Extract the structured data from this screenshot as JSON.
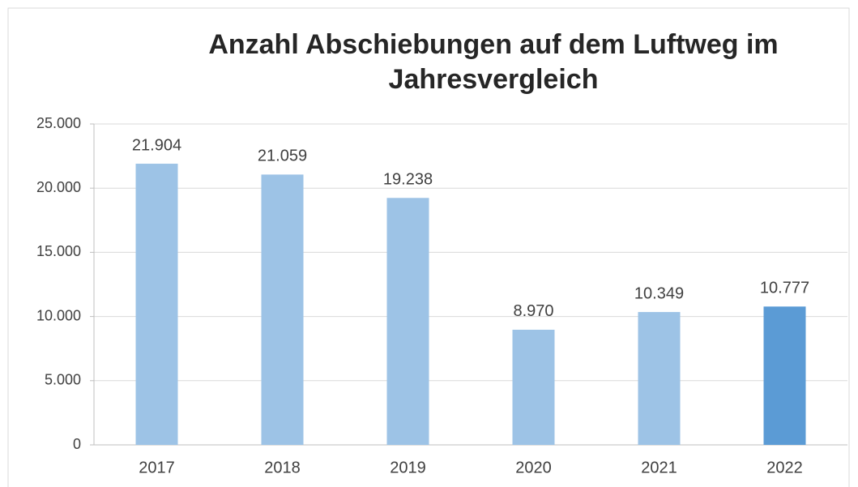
{
  "chart_data": {
    "type": "bar",
    "title": [
      "Anzahl Abschiebungen auf dem Luftweg im",
      "Jahresvergleich"
    ],
    "categories": [
      "2017",
      "2018",
      "2019",
      "2020",
      "2021",
      "2022"
    ],
    "values": [
      21904,
      21059,
      19238,
      8970,
      10349,
      10777
    ],
    "value_labels": [
      "21.904",
      "21.059",
      "19.238",
      "8.970",
      "10.349",
      "10.777"
    ],
    "colors": [
      "#9dc3e6",
      "#9dc3e6",
      "#9dc3e6",
      "#9dc3e6",
      "#9dc3e6",
      "#5b9bd5"
    ],
    "ylim": [
      0,
      25000
    ],
    "yticks": [
      {
        "value": 0,
        "label": "0"
      },
      {
        "value": 5000,
        "label": "5.000"
      },
      {
        "value": 10000,
        "label": "10.000"
      },
      {
        "value": 15000,
        "label": "15.000"
      },
      {
        "value": 20000,
        "label": "20.000"
      },
      {
        "value": 25000,
        "label": "25.000"
      }
    ],
    "grid": true
  }
}
